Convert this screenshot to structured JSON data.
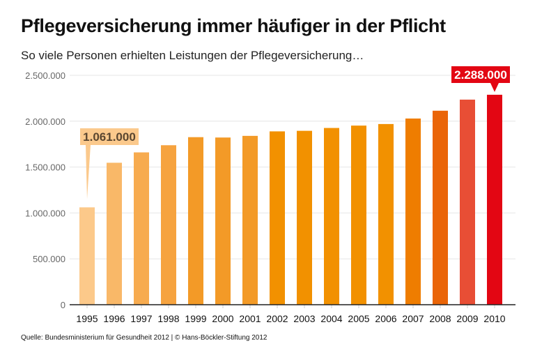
{
  "chart_data": {
    "type": "bar",
    "title": "Pflegeversicherung immer häufiger in der Pflicht",
    "subtitle": "So viele Personen erhielten Leistungen der Pflegeversicherung…",
    "xlabel": "",
    "ylabel": "",
    "ylim": [
      0,
      2500000
    ],
    "yticks": [
      0,
      500000,
      1000000,
      1500000,
      2000000,
      2500000
    ],
    "ytick_labels": [
      "0",
      "500.000",
      "1.000.000",
      "1.500.000",
      "2.000.000",
      "2.500.000"
    ],
    "grid": true,
    "categories": [
      "1995",
      "1996",
      "1997",
      "1998",
      "1999",
      "2000",
      "2001",
      "2002",
      "2003",
      "2004",
      "2005",
      "2006",
      "2007",
      "2008",
      "2009",
      "2010"
    ],
    "values": [
      1061000,
      1547000,
      1660000,
      1738000,
      1826000,
      1822000,
      1840000,
      1889000,
      1895000,
      1926000,
      1952000,
      1969000,
      2029000,
      2114000,
      2235000,
      2288000
    ],
    "colors": [
      "#fcc98a",
      "#f9b868",
      "#f7ab4f",
      "#f6a33f",
      "#f39a27",
      "#f39a27",
      "#f39a27",
      "#f29100",
      "#f29100",
      "#f29100",
      "#f29100",
      "#f29100",
      "#ef7d00",
      "#ea6508",
      "#e84e35",
      "#e30613"
    ],
    "annotations": [
      {
        "category": "1995",
        "text": "1.061.000",
        "bg": "#fbc98c",
        "color": "#5a4630"
      },
      {
        "category": "2010",
        "text": "2.288.000",
        "bg": "#e30613",
        "color": "#ffffff"
      }
    ]
  },
  "source": "Quelle: Bundesministerium für Gesundheit 2012 | © Hans-Böckler-Stiftung 2012"
}
